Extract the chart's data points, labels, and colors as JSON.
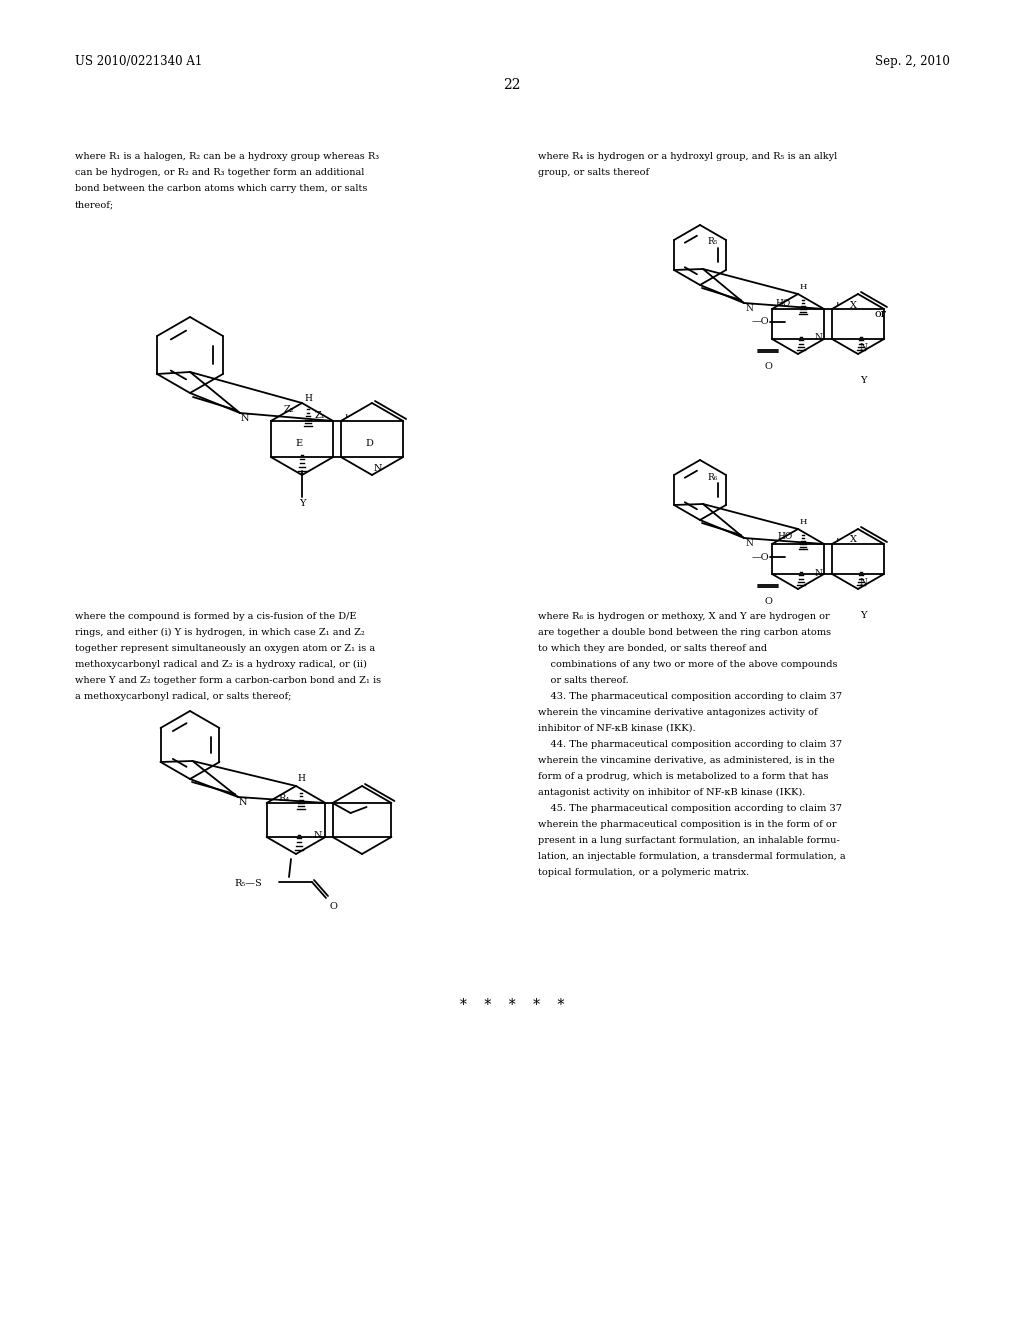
{
  "background_color": "#ffffff",
  "header_left": "US 2010/0221340 A1",
  "header_right": "Sep. 2, 2010",
  "page_number": "22",
  "footer": "*    *    *    *    *",
  "left_text_1_lines": [
    "where R₁ is a halogen, R₂ can be a hydroxy group whereas R₃",
    "can be hydrogen, or R₂ and R₃ together form an additional",
    "bond between the carbon atoms which carry them, or salts",
    "thereof;"
  ],
  "right_text_1_lines": [
    "where R₄ is hydrogen or a hydroxyl group, and R₅ is an alkyl",
    "group, or salts thereof"
  ],
  "left_text_2_lines": [
    "where the compound is formed by a cis-fusion of the D/E",
    "rings, and either (i) Y is hydrogen, in which case Z₁ and Z₂",
    "together represent simultaneously an oxygen atom or Z₁ is a",
    "methoxycarbonyl radical and Z₂ is a hydroxy radical, or (ii)",
    "where Y and Z₂ together form a carbon-carbon bond and Z₁ is",
    "a methoxycarbonyl radical, or salts thereof;"
  ],
  "right_text_2_lines": [
    "where R₆ is hydrogen or methoxy, X and Y are hydrogen or",
    "are together a double bond between the ring carbon atoms",
    "to which they are bonded, or salts thereof and",
    "    combinations of any two or more of the above compounds",
    "    or salts thereof.",
    "    43. The pharmaceutical composition according to claim 37",
    "wherein the vincamine derivative antagonizes activity of",
    "inhibitor of NF-κB kinase (IKK).",
    "    44. The pharmaceutical composition according to claim 37",
    "wherein the vincamine derivative, as administered, is in the",
    "form of a prodrug, which is metabolized to a form that has",
    "antagonist activity on inhibitor of NF-κB kinase (IKK).",
    "    45. The pharmaceutical composition according to claim 37",
    "wherein the pharmaceutical composition is in the form of or",
    "present in a lung surfactant formulation, an inhalable formu-",
    "lation, an injectable formulation, a transdermal formulation, a",
    "topical formulation, or a polymeric matrix."
  ]
}
